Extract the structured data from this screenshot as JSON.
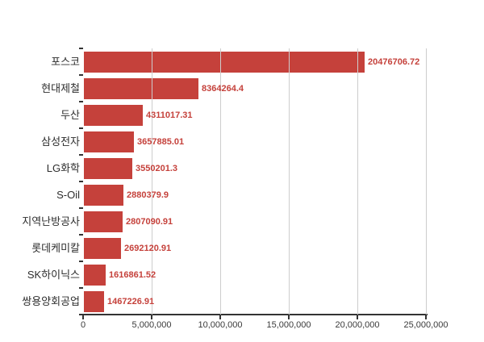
{
  "chart_data": {
    "type": "bar",
    "orientation": "horizontal",
    "title": "",
    "xlabel": "",
    "ylabel": "",
    "legend": false,
    "grid": true,
    "categories": [
      "포스코",
      "현대제철",
      "두산",
      "삼성전자",
      "LG화학",
      "S-Oil",
      "지역난방공사",
      "롯데케미칼",
      "SK하이닉스",
      "쌍용양회공업"
    ],
    "values": [
      20476706.72,
      8364264.4,
      4311017.31,
      3657885.01,
      3550201.3,
      2880379.9,
      2807090.91,
      2692120.91,
      1616861.52,
      1467226.91
    ],
    "value_labels": [
      "20476706.72",
      "8364264.4",
      "4311017.31",
      "3657885.01",
      "3550201.3",
      "2880379.9",
      "2807090.91",
      "2692120.91",
      "1616861.52",
      "1467226.91"
    ],
    "x_tick_labels": [
      "0",
      "5,000,000",
      "10,000,000",
      "15,000,000",
      "20,000,000",
      "25,000,000"
    ],
    "x_tick_values": [
      0,
      5000000,
      10000000,
      15000000,
      20000000,
      25000000
    ],
    "xlim": [
      0,
      25000000
    ],
    "colors": {
      "bar": "#c5413b",
      "value_label": "#c5413b",
      "axis_line": "#333333",
      "tick": "#333333",
      "category_label": "#2d2d2d",
      "axis_tick_label": "#3a3a3a",
      "gridline": "#cdcdcd",
      "background": "#ffffff"
    }
  }
}
